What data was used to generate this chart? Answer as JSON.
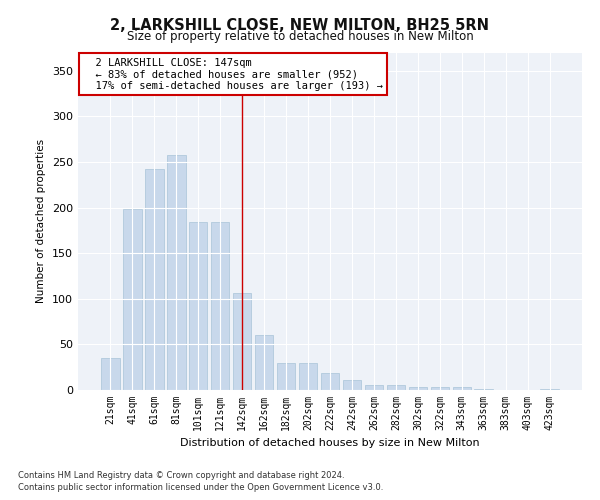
{
  "title": "2, LARKSHILL CLOSE, NEW MILTON, BH25 5RN",
  "subtitle": "Size of property relative to detached houses in New Milton",
  "xlabel": "Distribution of detached houses by size in New Milton",
  "ylabel": "Number of detached properties",
  "bar_color": "#c8d8eb",
  "bar_edge_color": "#a8c4d8",
  "categories": [
    "21sqm",
    "41sqm",
    "61sqm",
    "81sqm",
    "101sqm",
    "121sqm",
    "142sqm",
    "162sqm",
    "182sqm",
    "202sqm",
    "222sqm",
    "242sqm",
    "262sqm",
    "282sqm",
    "302sqm",
    "322sqm",
    "343sqm",
    "363sqm",
    "383sqm",
    "403sqm",
    "423sqm"
  ],
  "values": [
    35,
    198,
    242,
    258,
    184,
    184,
    106,
    60,
    30,
    30,
    19,
    11,
    6,
    6,
    3,
    3,
    3,
    1,
    0,
    0,
    1
  ],
  "annotation_text": "  2 LARKSHILL CLOSE: 147sqm\n  ← 83% of detached houses are smaller (952)\n  17% of semi-detached houses are larger (193) →",
  "annotation_box_color": "#ffffff",
  "annotation_box_edge_color": "#cc0000",
  "vline_x": 6.0,
  "vline_color": "#cc0000",
  "ylim": [
    0,
    370
  ],
  "yticks": [
    0,
    50,
    100,
    150,
    200,
    250,
    300,
    350
  ],
  "background_color": "#eef2f8",
  "grid_color": "#ffffff",
  "footer1": "Contains HM Land Registry data © Crown copyright and database right 2024.",
  "footer2": "Contains public sector information licensed under the Open Government Licence v3.0."
}
